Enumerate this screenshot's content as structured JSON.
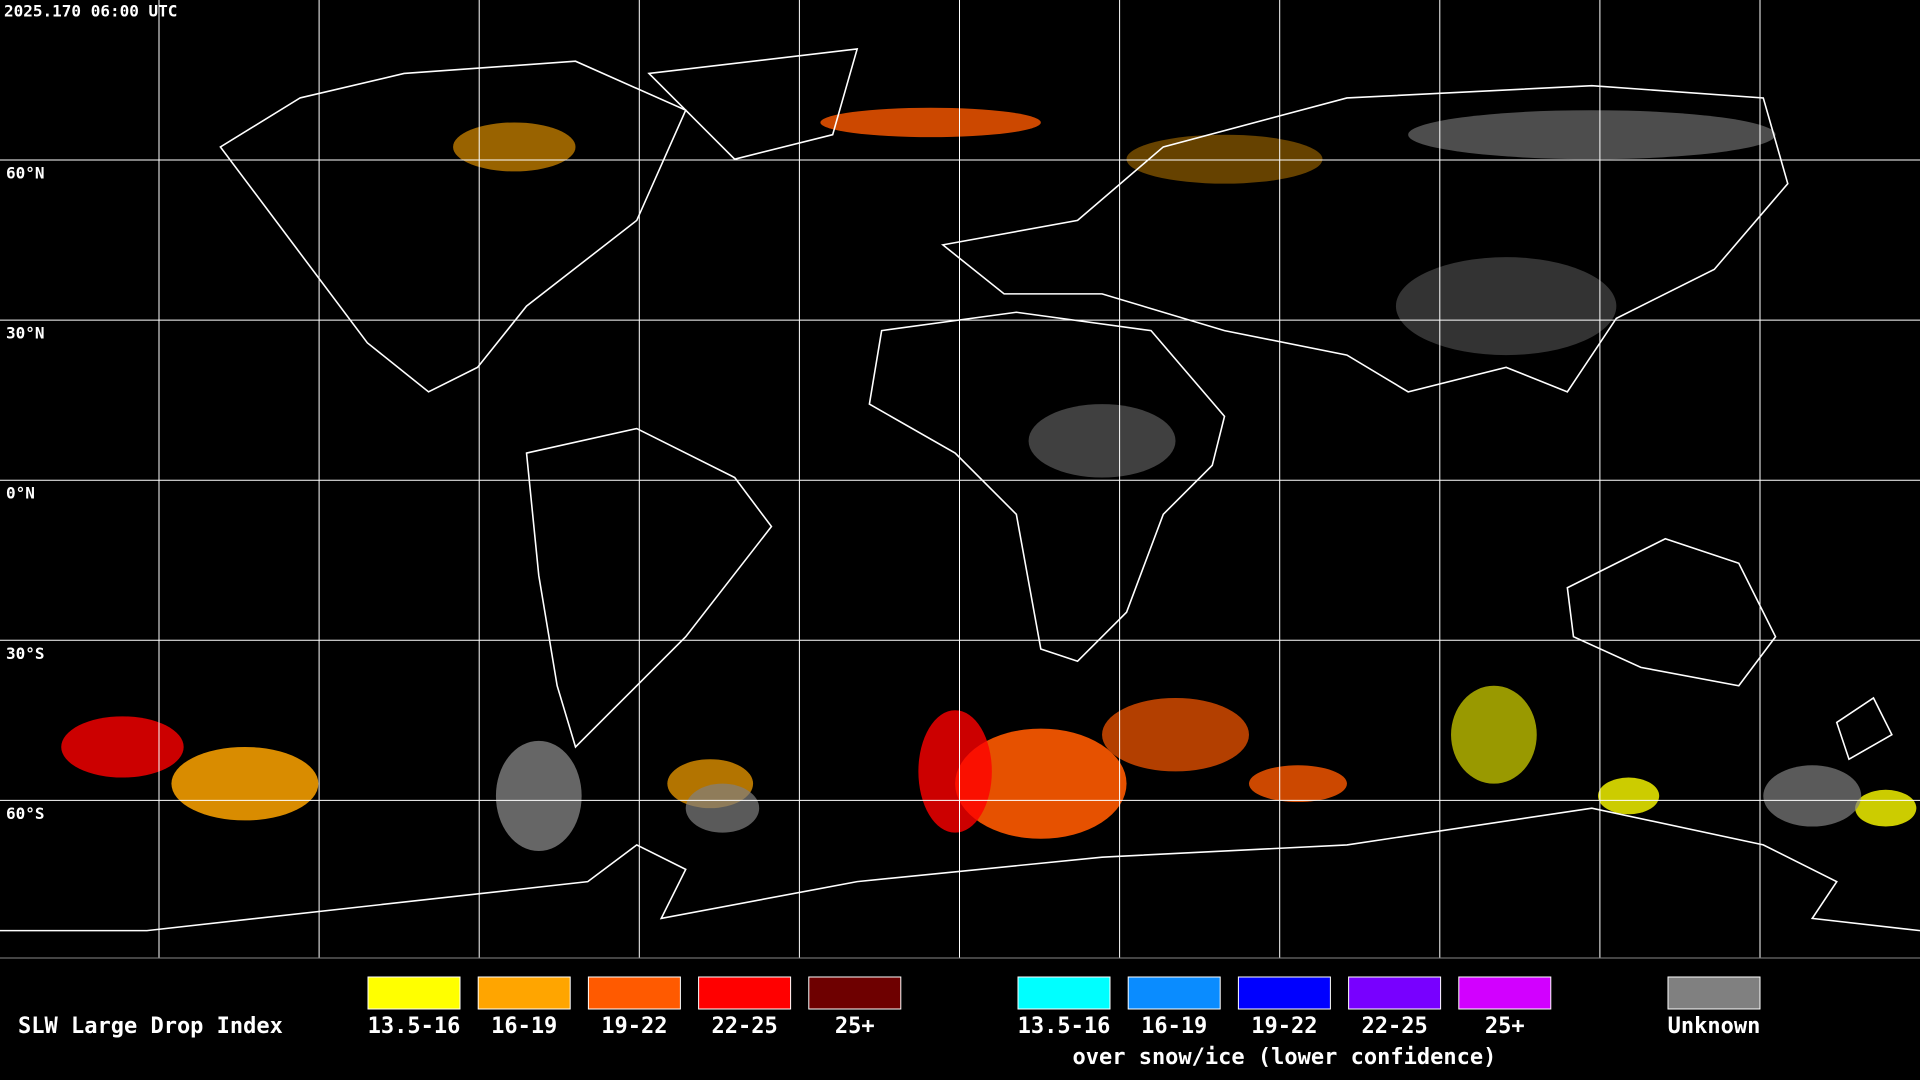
{
  "header": {
    "timestamp": "2025.170 06:00 UTC"
  },
  "map": {
    "latitude_labels": [
      "60°N",
      "30°N",
      "0°N",
      "30°S",
      "60°S"
    ]
  },
  "legend": {
    "title": "SLW Large Drop Index",
    "groups": [
      {
        "items": [
          {
            "label": "13.5-16",
            "color": "#ffff00"
          },
          {
            "label": "16-19",
            "color": "#ffa500"
          },
          {
            "label": "19-22",
            "color": "#ff5a00"
          },
          {
            "label": "22-25",
            "color": "#ff0000"
          },
          {
            "label": "25+",
            "color": "#6e0000"
          }
        ]
      },
      {
        "items": [
          {
            "label": "13.5-16",
            "color": "#00ffff"
          },
          {
            "label": "16-19",
            "color": "#0a8cff"
          },
          {
            "label": "19-22",
            "color": "#0000ff"
          },
          {
            "label": "22-25",
            "color": "#7800ff"
          },
          {
            "label": "25+",
            "color": "#d200ff"
          }
        ],
        "caption": "over snow/ice (lower confidence)"
      },
      {
        "items": [
          {
            "label": "Unknown",
            "color": "#808080"
          }
        ]
      }
    ]
  }
}
